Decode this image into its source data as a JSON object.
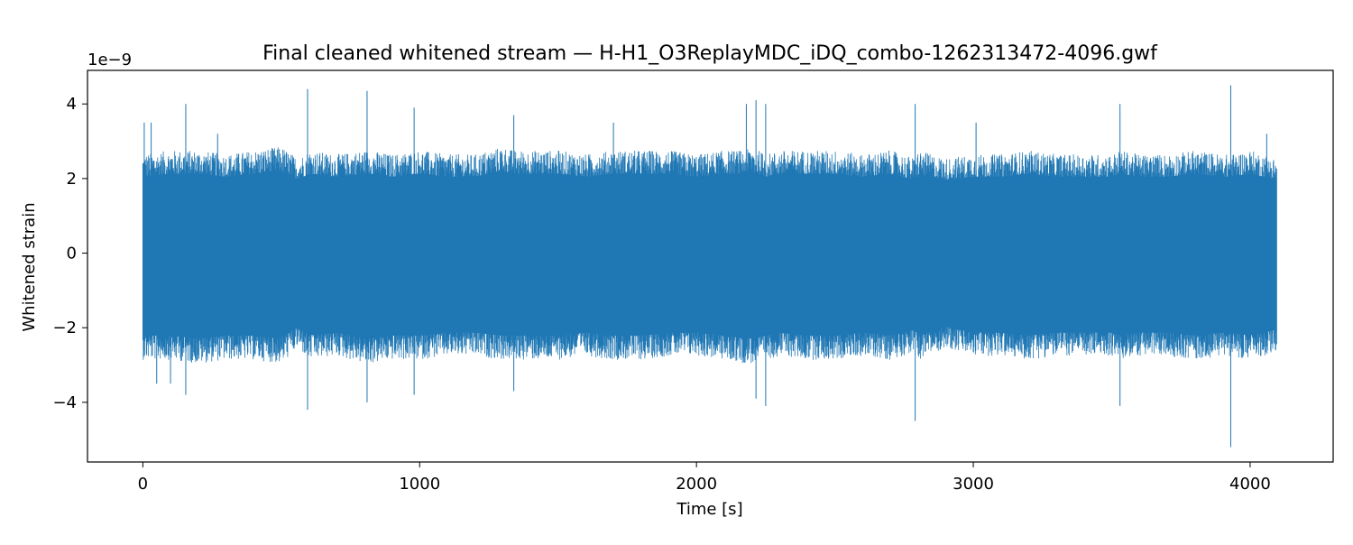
{
  "chart_data": {
    "type": "line",
    "title": "Final cleaned whitened stream — H-H1_O3ReplayMDC_iDQ_combo-1262313472-4096.gwf",
    "xlabel": "Time [s]",
    "ylabel": "Whitened strain",
    "y_offset_label": "1e−9",
    "xlim": [
      -200,
      4300
    ],
    "ylim": [
      -5.6,
      4.9
    ],
    "x_ticks": [
      0,
      1000,
      2000,
      3000,
      4000
    ],
    "x_tick_labels": [
      "0",
      "1000",
      "2000",
      "3000",
      "4000"
    ],
    "y_ticks": [
      -4,
      -2,
      0,
      2,
      4
    ],
    "y_tick_labels": [
      "−4",
      "−2",
      "0",
      "2",
      "4"
    ],
    "grid": false,
    "color": "#1f77b4",
    "series": [
      {
        "x_start": 0,
        "x_end": 4096,
        "envelope": {
          "x": [
            0,
            100,
            200,
            300,
            400,
            500,
            560,
            600,
            700,
            800,
            820,
            900,
            1000,
            1100,
            1200,
            1300,
            1340,
            1400,
            1500,
            1600,
            1700,
            1800,
            1900,
            2000,
            2100,
            2180,
            2200,
            2250,
            2300,
            2400,
            2500,
            2600,
            2700,
            2790,
            2800,
            2900,
            3000,
            3100,
            3200,
            3300,
            3400,
            3500,
            3530,
            3600,
            3700,
            3800,
            3900,
            3930,
            4000,
            4096
          ],
          "ymax": [
            2.5,
            2.6,
            2.6,
            2.5,
            2.6,
            2.7,
            2.4,
            2.6,
            2.5,
            2.6,
            2.6,
            2.5,
            2.6,
            2.5,
            2.5,
            2.7,
            2.6,
            2.6,
            2.6,
            2.5,
            2.6,
            2.6,
            2.6,
            2.5,
            2.6,
            2.6,
            2.7,
            2.5,
            2.6,
            2.6,
            2.6,
            2.5,
            2.6,
            2.4,
            2.6,
            2.4,
            2.5,
            2.5,
            2.6,
            2.5,
            2.5,
            2.5,
            2.6,
            2.5,
            2.5,
            2.6,
            2.5,
            2.5,
            2.6,
            2.4
          ],
          "ymin": [
            -2.7,
            -2.7,
            -2.8,
            -2.7,
            -2.7,
            -2.8,
            -2.4,
            -2.7,
            -2.6,
            -2.8,
            -2.8,
            -2.7,
            -2.7,
            -2.6,
            -2.6,
            -2.7,
            -2.7,
            -2.7,
            -2.7,
            -2.6,
            -2.7,
            -2.7,
            -2.6,
            -2.6,
            -2.7,
            -2.8,
            -2.8,
            -2.7,
            -2.6,
            -2.7,
            -2.7,
            -2.6,
            -2.7,
            -2.5,
            -2.7,
            -2.4,
            -2.6,
            -2.6,
            -2.7,
            -2.6,
            -2.6,
            -2.6,
            -2.7,
            -2.6,
            -2.6,
            -2.7,
            -2.6,
            -2.6,
            -2.7,
            -2.5
          ]
        },
        "spikes": [
          {
            "x": 5,
            "y": 3.5
          },
          {
            "x": 30,
            "y": 3.5
          },
          {
            "x": 50,
            "y": -3.5
          },
          {
            "x": 100,
            "y": -3.5
          },
          {
            "x": 155,
            "y": 4.0
          },
          {
            "x": 155,
            "y": -3.8
          },
          {
            "x": 270,
            "y": 3.2
          },
          {
            "x": 595,
            "y": 4.4
          },
          {
            "x": 595,
            "y": -4.2
          },
          {
            "x": 810,
            "y": 4.35
          },
          {
            "x": 810,
            "y": -4.0
          },
          {
            "x": 980,
            "y": 3.9
          },
          {
            "x": 980,
            "y": -3.8
          },
          {
            "x": 1340,
            "y": 3.7
          },
          {
            "x": 1340,
            "y": -3.7
          },
          {
            "x": 1700,
            "y": 3.5
          },
          {
            "x": 2180,
            "y": 4.0
          },
          {
            "x": 2215,
            "y": 4.1
          },
          {
            "x": 2215,
            "y": -3.9
          },
          {
            "x": 2250,
            "y": 4.0
          },
          {
            "x": 2250,
            "y": -4.1
          },
          {
            "x": 2790,
            "y": 4.0
          },
          {
            "x": 2790,
            "y": -4.5
          },
          {
            "x": 3010,
            "y": 3.5
          },
          {
            "x": 3530,
            "y": 4.0
          },
          {
            "x": 3530,
            "y": -4.1
          },
          {
            "x": 3930,
            "y": 4.5
          },
          {
            "x": 3930,
            "y": -5.2
          },
          {
            "x": 4060,
            "y": 3.2
          }
        ]
      }
    ]
  }
}
